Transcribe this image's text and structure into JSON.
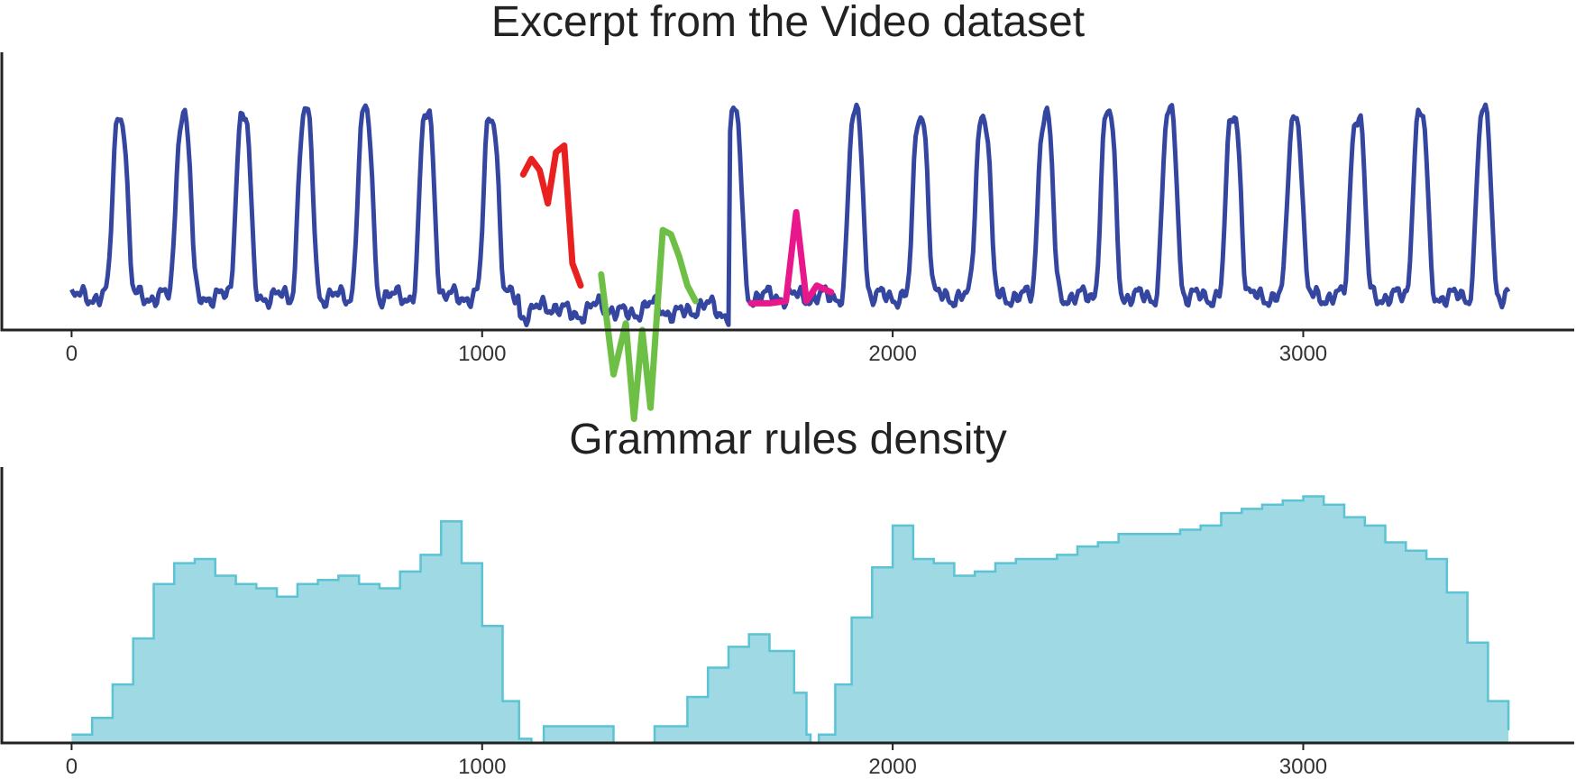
{
  "chart_data": [
    {
      "type": "line",
      "title": "Excerpt from the Video dataset",
      "xlabel": "",
      "ylabel": "",
      "x_ticks": [
        0,
        1000,
        2000,
        3000
      ],
      "x_tick_labels": [
        "0",
        "1000",
        "2000",
        "3000"
      ],
      "xlim": [
        -170,
        3660
      ],
      "ylim": [
        -0.15,
        1.1
      ],
      "grid": false,
      "legend": "none",
      "colors": {
        "base": "#3446a0",
        "highlights": [
          "#e82020",
          "#6dbf45",
          "#e8188c"
        ]
      },
      "baseline_level": 0.0,
      "peak_level": 0.82,
      "peaks_x": [
        118,
        272,
        418,
        570,
        715,
        866,
        1022,
        1614,
        1910,
        2068,
        2220,
        2372,
        2525,
        2675,
        2830,
        2980,
        3132,
        3285,
        3440
      ],
      "highlighted_segments": [
        {
          "color": "#e82020",
          "x": [
            1100,
            1120,
            1140,
            1160,
            1180,
            1200,
            1220,
            1240
          ],
          "y": [
            0.55,
            0.62,
            0.57,
            0.42,
            0.65,
            0.68,
            0.15,
            0.05
          ]
        },
        {
          "color": "#6dbf45",
          "x": [
            1290,
            1320,
            1350,
            1370,
            1390,
            1410,
            1440,
            1460,
            1480,
            1500,
            1520
          ],
          "y": [
            0.1,
            -0.35,
            -0.12,
            -0.55,
            -0.15,
            -0.5,
            0.3,
            0.28,
            0.18,
            0.05,
            -0.02
          ]
        },
        {
          "color": "#e8188c",
          "x": [
            1655,
            1700,
            1740,
            1765,
            1790,
            1815,
            1850
          ],
          "y": [
            -0.03,
            -0.03,
            -0.02,
            0.38,
            -0.02,
            0.05,
            0.02
          ]
        }
      ]
    },
    {
      "type": "area",
      "title": "Grammar rules density",
      "xlabel": "",
      "ylabel": "",
      "x_ticks": [
        0,
        1000,
        2000,
        3000
      ],
      "x_tick_labels": [
        "0",
        "1000",
        "2000",
        "3000"
      ],
      "xlim": [
        -170,
        3660
      ],
      "ylim": [
        0,
        66
      ],
      "grid": false,
      "legend": "none",
      "colors": {
        "fill": "#9fd9e3",
        "stroke": "#5bc3d3"
      },
      "x": [
        0,
        50,
        100,
        150,
        200,
        250,
        300,
        350,
        400,
        450,
        500,
        550,
        600,
        650,
        700,
        750,
        800,
        850,
        900,
        950,
        1000,
        1050,
        1090,
        1120,
        1150,
        1300,
        1320,
        1400,
        1420,
        1500,
        1550,
        1600,
        1650,
        1700,
        1760,
        1790,
        1800,
        1820,
        1860,
        1900,
        1950,
        2000,
        2050,
        2100,
        2150,
        2200,
        2250,
        2300,
        2350,
        2400,
        2450,
        2500,
        2550,
        2600,
        2650,
        2700,
        2750,
        2800,
        2850,
        2900,
        2950,
        3000,
        3050,
        3100,
        3150,
        3200,
        3250,
        3300,
        3350,
        3400,
        3450,
        3500
      ],
      "values": [
        2,
        6,
        14,
        25,
        38,
        43,
        44,
        40,
        38,
        37,
        35,
        38,
        39,
        40,
        38,
        37,
        41,
        45,
        53,
        43,
        28,
        10,
        1,
        0,
        4,
        4,
        0,
        0,
        4,
        11,
        18,
        23,
        26,
        22,
        12,
        2,
        0,
        2,
        14,
        30,
        42,
        52,
        44,
        43,
        40,
        41,
        43,
        44,
        44,
        45,
        47,
        48,
        50,
        50,
        50,
        51,
        52,
        55,
        56,
        57,
        58,
        59,
        57,
        54,
        52,
        48,
        46,
        44,
        36,
        24,
        10,
        3
      ]
    }
  ]
}
